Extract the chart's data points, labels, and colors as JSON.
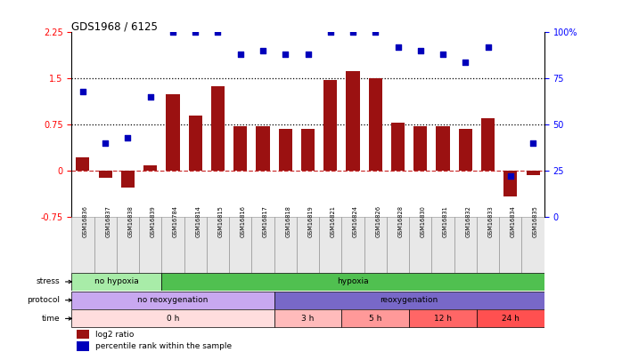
{
  "title": "GDS1968 / 6125",
  "samples": [
    "GSM16836",
    "GSM16837",
    "GSM16838",
    "GSM16839",
    "GSM16784",
    "GSM16814",
    "GSM16815",
    "GSM16816",
    "GSM16817",
    "GSM16818",
    "GSM16819",
    "GSM16821",
    "GSM16824",
    "GSM16826",
    "GSM16828",
    "GSM16830",
    "GSM16831",
    "GSM16832",
    "GSM16833",
    "GSM16834",
    "GSM16835"
  ],
  "log2_ratio": [
    0.22,
    -0.12,
    -0.28,
    0.08,
    1.25,
    0.9,
    1.38,
    0.72,
    0.72,
    0.68,
    0.68,
    1.47,
    1.62,
    1.5,
    0.78,
    0.72,
    0.72,
    0.68,
    0.85,
    -0.42,
    -0.08
  ],
  "pct_right": [
    68,
    40,
    43,
    65,
    100,
    100,
    100,
    88,
    90,
    88,
    88,
    100,
    100,
    100,
    92,
    90,
    88,
    84,
    92,
    22,
    40
  ],
  "bar_color": "#9B1111",
  "dot_color": "#0000BB",
  "ylim": [
    -0.75,
    2.25
  ],
  "left_yticks": [
    -0.75,
    0,
    0.75,
    1.5,
    2.25
  ],
  "left_yticklabels": [
    "-0.75",
    "0",
    "0.75",
    "1.5",
    "2.25"
  ],
  "right_yticks": [
    0,
    25,
    50,
    75,
    100
  ],
  "right_yticklabels": [
    "0",
    "25",
    "50",
    "75",
    "100%"
  ],
  "stress_labels": [
    "no hypoxia",
    "hypoxia"
  ],
  "stress_ranges": [
    [
      0,
      4
    ],
    [
      4,
      21
    ]
  ],
  "stress_colors": [
    "#A8ECA8",
    "#50C050"
  ],
  "protocol_labels": [
    "no reoxygenation",
    "reoxygenation"
  ],
  "protocol_ranges": [
    [
      0,
      9
    ],
    [
      9,
      21
    ]
  ],
  "protocol_colors": [
    "#C8A8F0",
    "#7868C8"
  ],
  "time_labels": [
    "0 h",
    "3 h",
    "5 h",
    "12 h",
    "24 h"
  ],
  "time_ranges": [
    [
      0,
      9
    ],
    [
      9,
      12
    ],
    [
      12,
      15
    ],
    [
      15,
      18
    ],
    [
      18,
      21
    ]
  ],
  "time_colors": [
    "#FFDDDD",
    "#FFBBBB",
    "#FF9999",
    "#FF6666",
    "#FF5050"
  ],
  "legend_bar_label": "log2 ratio",
  "legend_dot_label": "percentile rank within the sample",
  "legend_bar_color": "#9B1111",
  "legend_dot_color": "#0000BB"
}
